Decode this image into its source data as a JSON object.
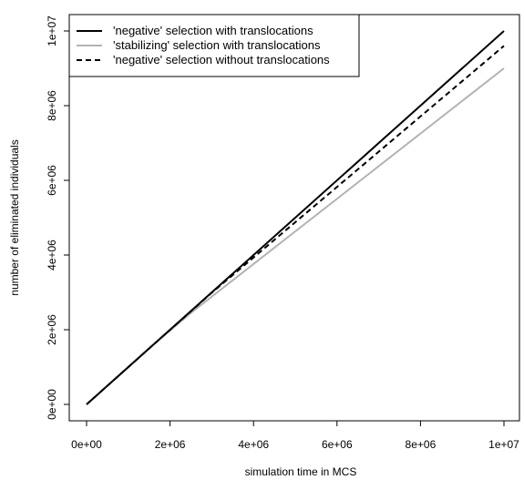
{
  "chart_data": {
    "type": "line",
    "xlabel": "simulation time in MCS",
    "ylabel": "number of eliminated individuals",
    "xlim": [
      0,
      10000000
    ],
    "ylim": [
      0,
      10000000
    ],
    "x_ticks": [
      0,
      2000000,
      4000000,
      6000000,
      8000000,
      10000000
    ],
    "x_tick_labels": [
      "0e+00",
      "2e+06",
      "4e+06",
      "6e+06",
      "8e+06",
      "1e+07"
    ],
    "y_ticks": [
      0,
      2000000,
      4000000,
      6000000,
      8000000,
      10000000
    ],
    "y_tick_labels": [
      "0e+00",
      "2e+06",
      "4e+06",
      "6e+06",
      "8e+06",
      "1e+07"
    ],
    "grid": false,
    "legend_position": "top-left",
    "series": [
      {
        "name": "'negative' selection with translocations",
        "color": "#000000",
        "dash": "solid",
        "x": [
          0,
          10000000
        ],
        "y": [
          0,
          10000000
        ]
      },
      {
        "name": "'stabilizing' selection with translocations",
        "color": "#b3b3b3",
        "dash": "solid",
        "x": [
          0,
          1600000,
          2500000,
          10000000
        ],
        "y": [
          0,
          1600000,
          2450000,
          9000000
        ]
      },
      {
        "name": "'negative' selection without translocations",
        "color": "#000000",
        "dash": "dashed",
        "x": [
          0,
          1600000,
          3000000,
          10000000
        ],
        "y": [
          0,
          1600000,
          2990000,
          9600000
        ]
      }
    ]
  }
}
